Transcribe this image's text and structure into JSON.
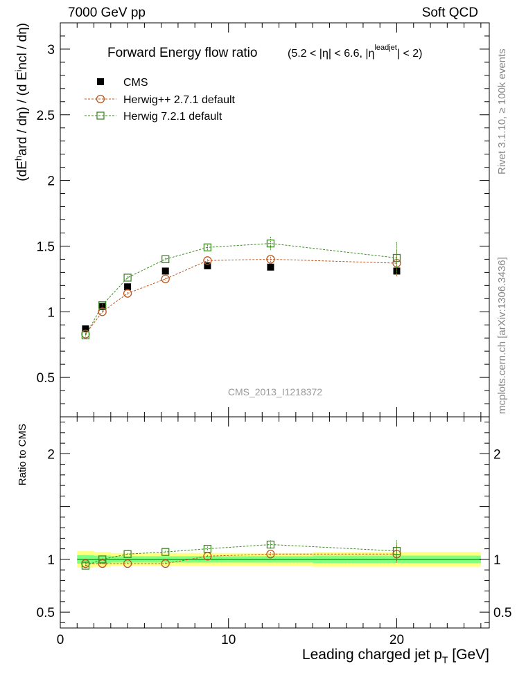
{
  "header": {
    "left_label": "7000 GeV pp",
    "right_label": "Soft QCD"
  },
  "side": {
    "rivet_label": "Rivet 3.1.10, ≥ 100k events",
    "mcplots_label": "mcplots.cern.ch [arXiv:1306.3436]"
  },
  "chart_data": [
    {
      "type": "scatter",
      "panel": "main",
      "title": "Forward Energy flow ratio",
      "title_cut": "(5.2 < |η| < 6.6, |η",
      "title_cut_sup": "leadjet",
      "title_cut_end": "| < 2)",
      "ylabel_parts": [
        "(dE",
        "h",
        "ard / dη) / (d E",
        "i",
        "ncl / dη)"
      ],
      "analysis_label": "CMS_2013_I1218372",
      "xlim": [
        0,
        25.5
      ],
      "ylim": [
        0.2,
        3.2
      ],
      "y_ticks": [
        0.5,
        1,
        1.5,
        2,
        2.5,
        3
      ],
      "y_tick_labels": [
        "0.5",
        "1",
        "1.5",
        "2",
        "2.5",
        "3"
      ],
      "legend_position": "top-left",
      "series": [
        {
          "name": "CMS",
          "color": "#000000",
          "marker": "filled-square",
          "x": [
            1.5,
            2.5,
            4.0,
            6.25,
            8.75,
            12.5,
            20.0
          ],
          "y": [
            0.87,
            1.04,
            1.19,
            1.31,
            1.35,
            1.34,
            1.31
          ]
        },
        {
          "name": "Herwig++ 2.7.1 default",
          "color": "#c0541a",
          "marker": "open-circle",
          "x": [
            1.5,
            2.5,
            4.0,
            6.25,
            8.75,
            12.5,
            20.0
          ],
          "y": [
            0.83,
            1.0,
            1.14,
            1.25,
            1.39,
            1.4,
            1.37
          ],
          "yerr": [
            0.01,
            0.01,
            0.01,
            0.01,
            0.01,
            0.02,
            0.1
          ]
        },
        {
          "name": "Herwig 7.2.1 default",
          "color": "#3d8a22",
          "marker": "open-square",
          "x": [
            1.5,
            2.5,
            4.0,
            6.25,
            8.75,
            12.5,
            20.0
          ],
          "y": [
            0.82,
            1.05,
            1.26,
            1.4,
            1.49,
            1.52,
            1.41
          ],
          "yerr": [
            0.01,
            0.01,
            0.01,
            0.01,
            0.02,
            0.05,
            0.12
          ]
        }
      ]
    },
    {
      "type": "scatter",
      "panel": "ratio",
      "ylabel": "Ratio to CMS",
      "xlabel_main": "Leading charged jet p",
      "xlabel_sub": "T",
      "xlabel_unit": " [GeV]",
      "xlim": [
        0,
        25.5
      ],
      "ylim": [
        0.35,
        2.35
      ],
      "x_ticks": [
        0,
        10,
        20
      ],
      "x_tick_labels": [
        "0",
        "10",
        "20"
      ],
      "y_ticks": [
        0.5,
        1,
        2
      ],
      "y_tick_labels": [
        "0.5",
        "1",
        "2"
      ],
      "band_bins": [
        [
          1.0,
          2.0
        ],
        [
          2.0,
          3.0
        ],
        [
          3.0,
          5.0
        ],
        [
          5.0,
          7.5
        ],
        [
          7.5,
          10.0
        ],
        [
          10.0,
          15.0
        ],
        [
          15.0,
          25.0
        ]
      ],
      "band_yellow": [
        0.08,
        0.07,
        0.06,
        0.06,
        0.06,
        0.06,
        0.07
      ],
      "band_green": [
        0.04,
        0.035,
        0.03,
        0.03,
        0.03,
        0.03,
        0.035
      ],
      "series": [
        {
          "name": "Herwig++ 2.7.1 default",
          "color": "#c0541a",
          "marker": "open-circle",
          "x": [
            1.5,
            2.5,
            4.0,
            6.25,
            8.75,
            12.5,
            20.0
          ],
          "y": [
            0.96,
            0.96,
            0.96,
            0.96,
            1.03,
            1.05,
            1.05
          ],
          "yerr": [
            0.01,
            0.01,
            0.01,
            0.01,
            0.01,
            0.02,
            0.08
          ]
        },
        {
          "name": "Herwig 7.2.1 default",
          "color": "#3d8a22",
          "marker": "open-square",
          "x": [
            1.5,
            2.5,
            4.0,
            6.25,
            8.75,
            12.5,
            20.0
          ],
          "y": [
            0.94,
            1.0,
            1.05,
            1.07,
            1.1,
            1.14,
            1.08
          ],
          "yerr": [
            0.01,
            0.01,
            0.01,
            0.01,
            0.02,
            0.04,
            0.1
          ]
        }
      ]
    }
  ]
}
